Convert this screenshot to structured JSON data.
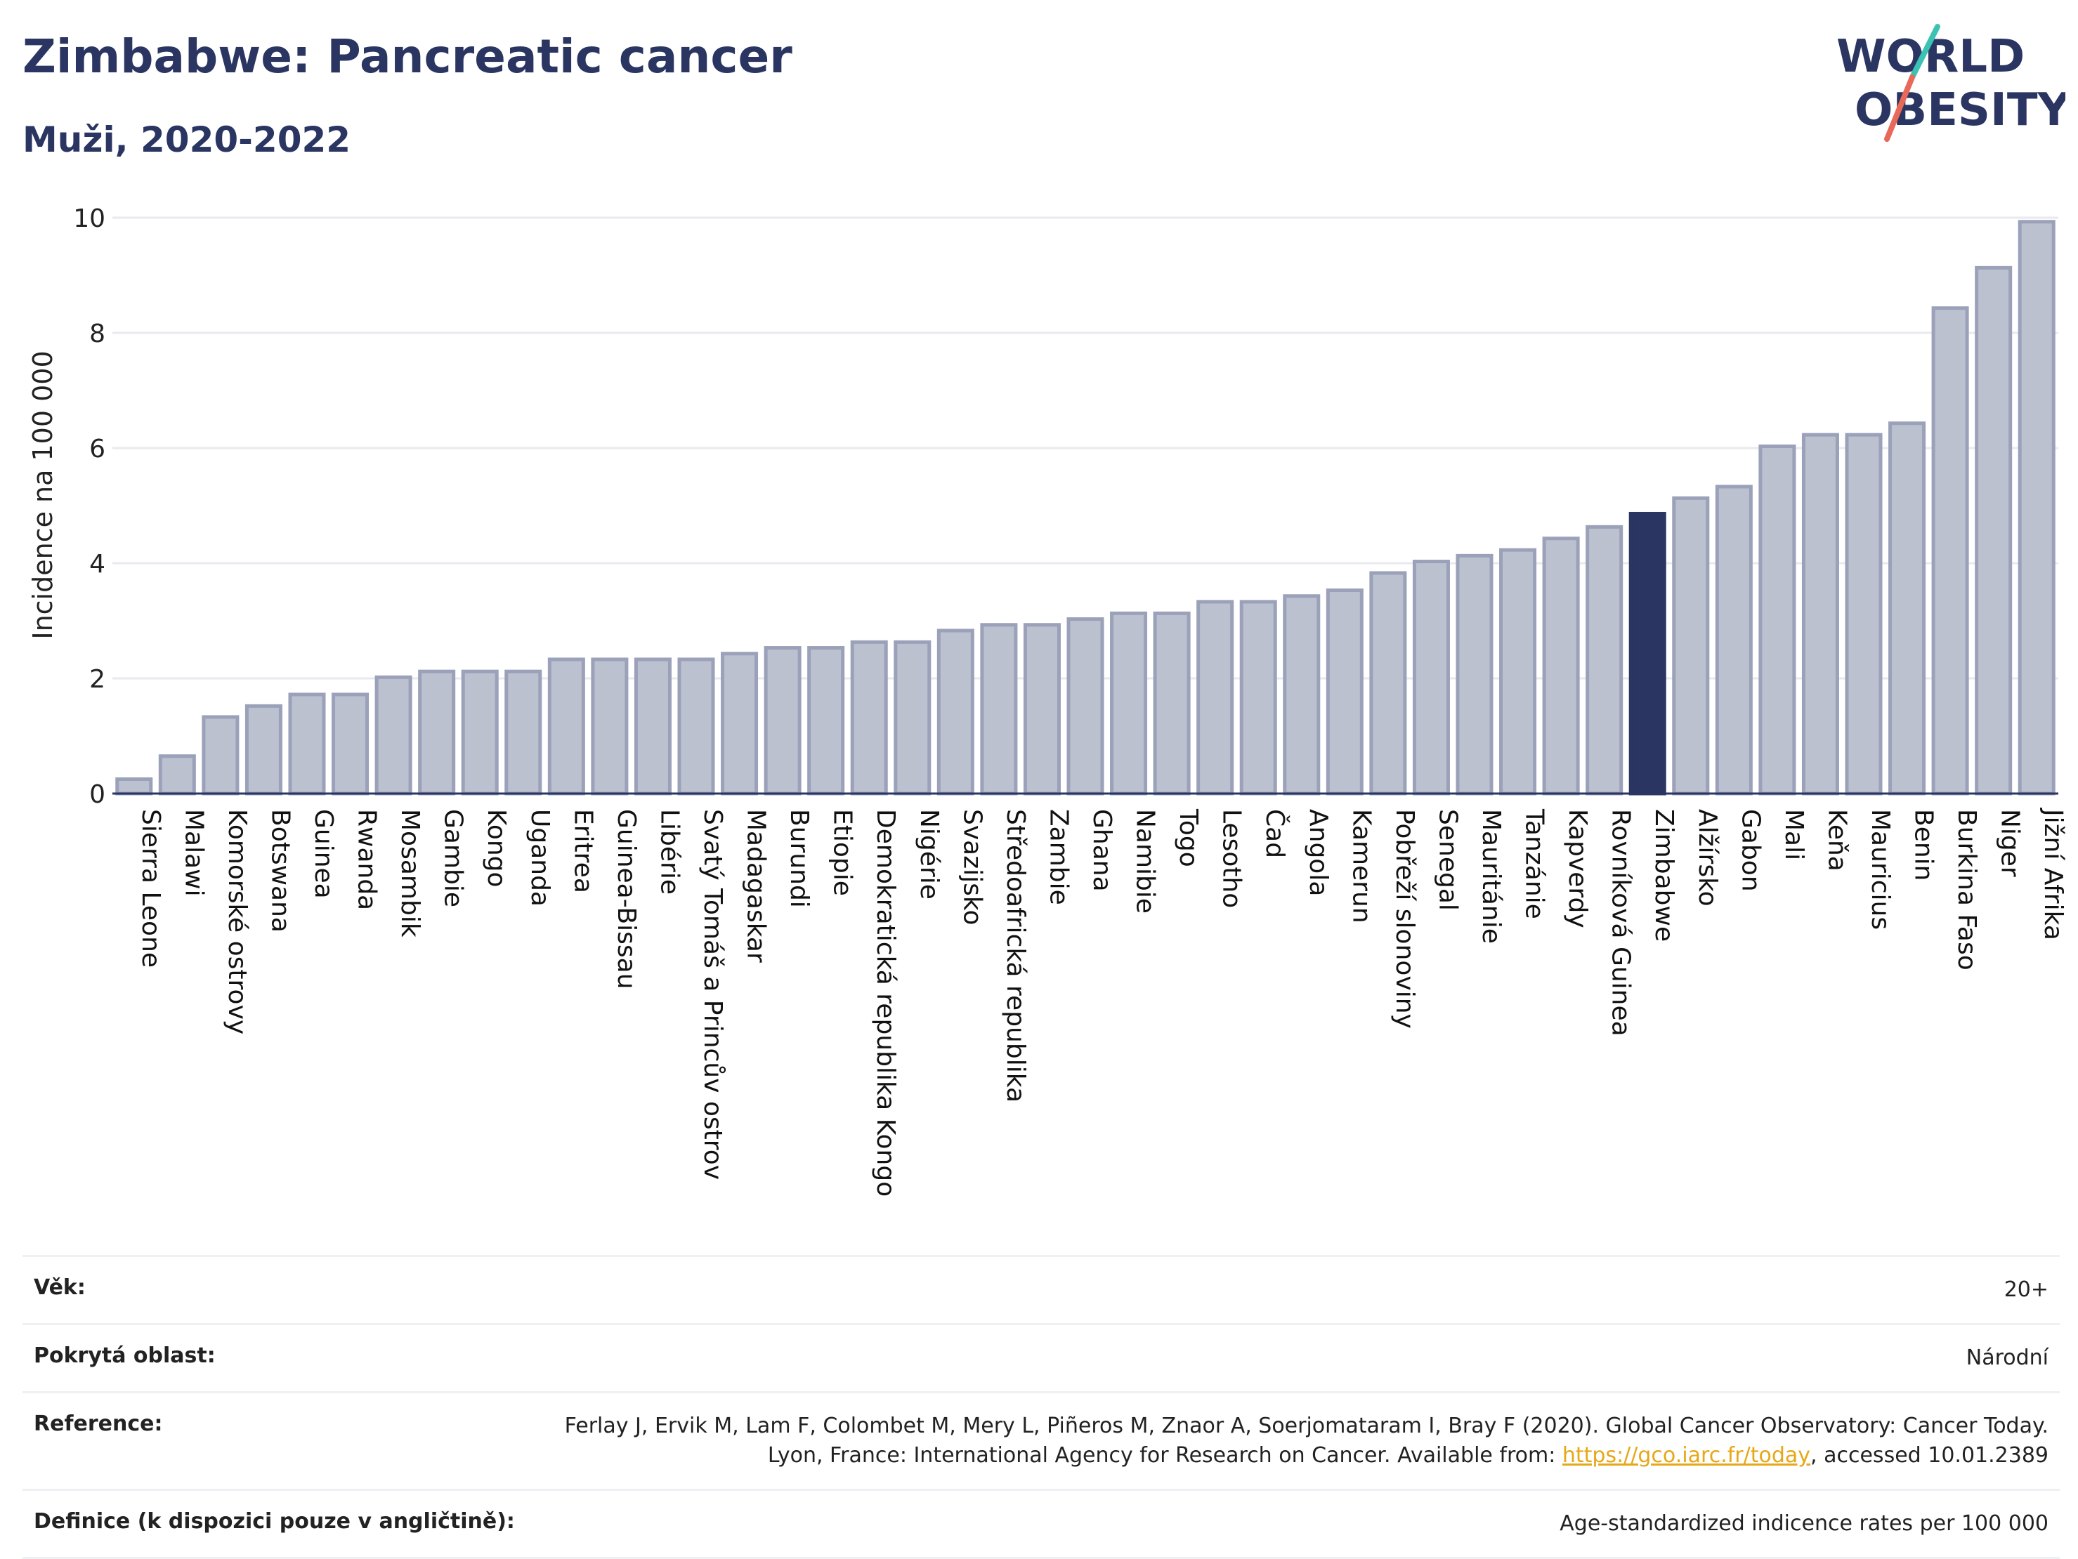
{
  "header": {
    "title": "Zimbabwe: Pancreatic cancer",
    "subtitle": "Muži, 2020-2022",
    "logo_line1": "WORLD",
    "logo_line2": "OBESITY"
  },
  "chart_data": {
    "type": "bar",
    "ylabel": "Incidence na 100 000",
    "xlabel": "",
    "ylim": [
      0,
      10
    ],
    "yticks": [
      0,
      2,
      4,
      6,
      8,
      10
    ],
    "grid": true,
    "highlight": "Zimbabwe",
    "colors": {
      "bar": "#bcc1d0",
      "bar_edge": "#9aa1b9",
      "highlight": "#2a3561",
      "grid": "#e8eaef",
      "axis": "#2a3561"
    },
    "categories": [
      "Sierra Leone",
      "Malawi",
      "Komorské ostrovy",
      "Botswana",
      "Guinea",
      "Rwanda",
      "Mosambik",
      "Gambie",
      "Kongo",
      "Uganda",
      "Eritrea",
      "Guinea-Bissau",
      "Libérie",
      "Svatý Tomáš a Princův ostrov",
      "Madagaskar",
      "Burundi",
      "Etiopie",
      "Demokratická republika Kongo",
      "Nigérie",
      "Svazijsko",
      "Středoafrická republika",
      "Zambie",
      "Ghana",
      "Namibie",
      "Togo",
      "Lesotho",
      "Čad",
      "Angola",
      "Kamerun",
      "Pobřeží slonoviny",
      "Senegal",
      "Mauritánie",
      "Tanzánie",
      "Kapverdy",
      "Rovníková Guinea",
      "Zimbabwe",
      "Alžírsko",
      "Gabon",
      "Mali",
      "Keňa",
      "Mauricius",
      "Benin",
      "Burkina Faso",
      "Niger",
      "Jižní Afrika"
    ],
    "values": [
      0.25,
      0.65,
      1.33,
      1.52,
      1.72,
      1.72,
      2.02,
      2.12,
      2.12,
      2.12,
      2.33,
      2.33,
      2.33,
      2.33,
      2.43,
      2.53,
      2.53,
      2.63,
      2.63,
      2.83,
      2.93,
      2.93,
      3.03,
      3.13,
      3.13,
      3.33,
      3.33,
      3.43,
      3.53,
      3.83,
      4.03,
      4.13,
      4.23,
      4.43,
      4.63,
      4.86,
      5.13,
      5.33,
      6.03,
      6.23,
      6.23,
      6.43,
      8.43,
      9.13,
      9.93
    ]
  },
  "meta": [
    {
      "label": "Věk:",
      "value": "20+"
    },
    {
      "label": "Pokrytá oblast:",
      "value": "Národní"
    },
    {
      "label": "Reference:",
      "value_pre": "Ferlay J, Ervik M, Lam F, Colombet M, Mery L, Piñeros M, Znaor A, Soerjomataram I, Bray F (2020). Global Cancer Observatory: Cancer Today. Lyon, France: International Agency for Research on Cancer. Available from: ",
      "link": "https://gco.iarc.fr/today",
      "value_post": ", accessed 10.01.2389"
    },
    {
      "label": "Definice (k dispozici pouze v angličtině):",
      "value": "Age-standardized indicence rates per 100 000"
    }
  ]
}
